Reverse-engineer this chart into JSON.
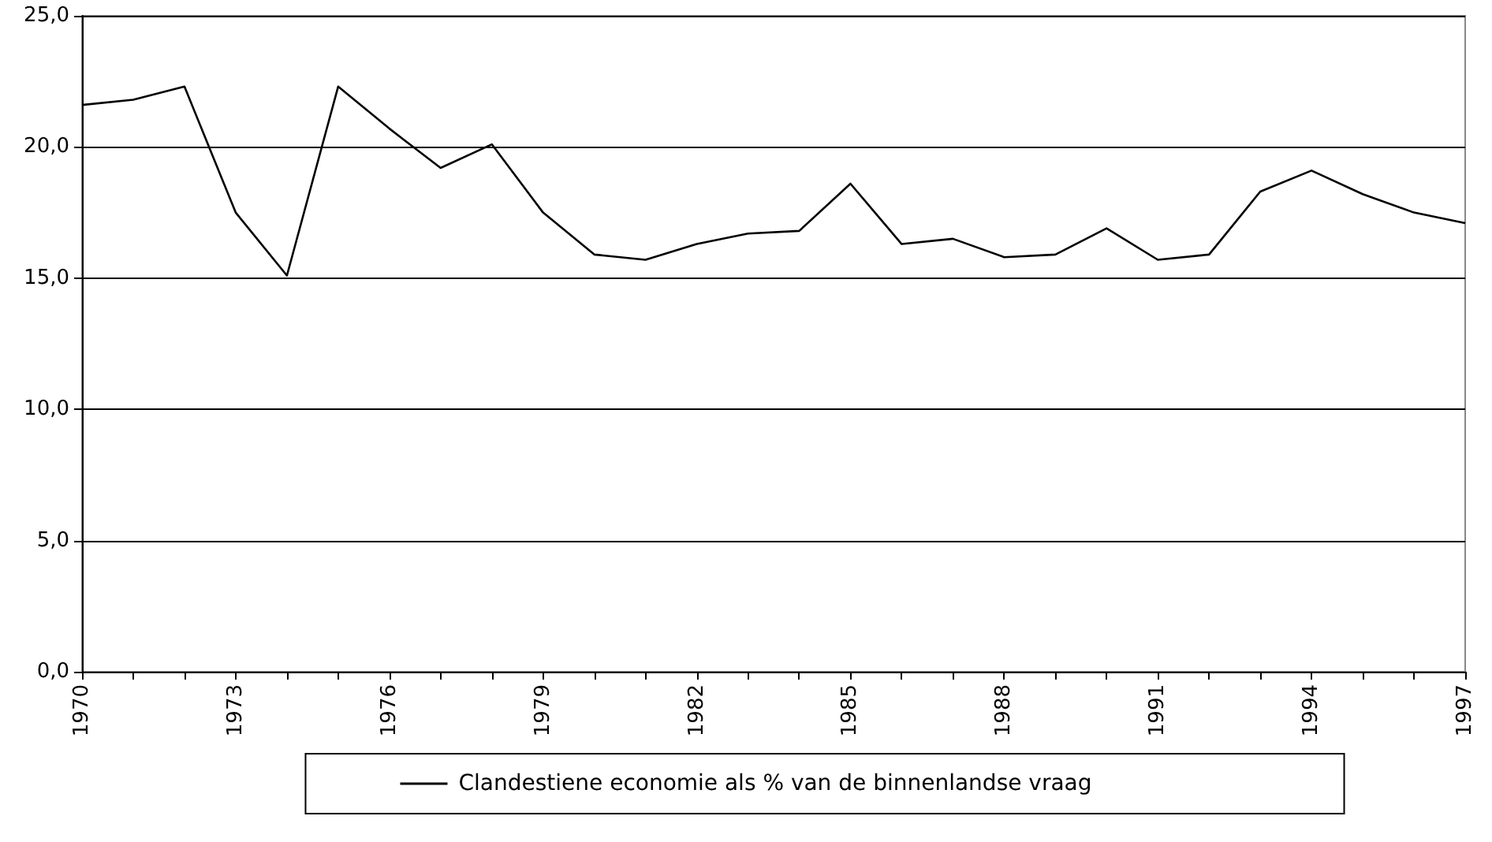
{
  "chart_data": {
    "type": "line",
    "categories": [
      "1970",
      null,
      null,
      "1973",
      null,
      null,
      "1976",
      null,
      null,
      "1979",
      null,
      null,
      "1982",
      null,
      null,
      "1985",
      null,
      null,
      "1988",
      null,
      null,
      "1991",
      null,
      null,
      "1994",
      null,
      null,
      "1997"
    ],
    "series": [
      {
        "name": "Clandestiene economie als % van de binnenlandse vraag",
        "color": "#000000",
        "values": [
          21.6,
          21.8,
          22.3,
          17.5,
          15.1,
          22.3,
          20.7,
          19.2,
          20.1,
          17.5,
          15.9,
          15.7,
          16.3,
          16.7,
          16.8,
          18.6,
          16.3,
          16.5,
          15.8,
          15.9,
          16.9,
          15.7,
          15.9,
          18.3,
          19.1,
          18.2,
          17.5,
          17.1
        ]
      }
    ],
    "ylim": [
      0,
      25
    ],
    "yticks": [
      {
        "value": 0,
        "label": "0,0"
      },
      {
        "value": 5,
        "label": "5,0"
      },
      {
        "value": 10,
        "label": "10,0"
      },
      {
        "value": 15,
        "label": "15,0"
      },
      {
        "value": 20,
        "label": "20,0"
      },
      {
        "value": 25,
        "label": "25,0"
      }
    ],
    "grid": "y",
    "legend": "bottom",
    "marker": "none",
    "line_style": "solid"
  }
}
